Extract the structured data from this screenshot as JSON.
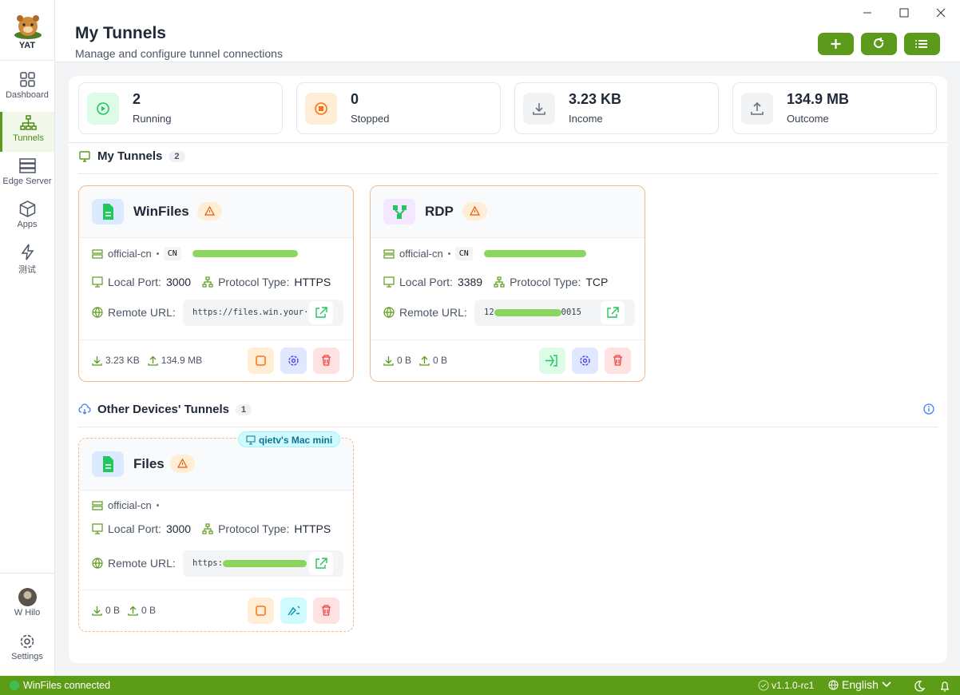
{
  "app": {
    "logo": "YAT",
    "nav": [
      "Dashboard",
      "Tunnels",
      "Edge Server",
      "Apps",
      "测试"
    ],
    "user": "W Hilo",
    "settings": "Settings"
  },
  "header": {
    "title": "My Tunnels",
    "subtitle": "Manage and configure tunnel connections"
  },
  "stats": [
    {
      "value": 2,
      "label": "Running"
    },
    {
      "value": 0,
      "label": "Stopped"
    },
    {
      "value": "3.23 KB",
      "label": "Income"
    },
    {
      "value": "134.9 MB",
      "label": "Outcome"
    }
  ],
  "labels": {
    "local_port": "Local Port:",
    "protocol_type": "Protocol Type:",
    "remote_url": "Remote URL:"
  },
  "sections": [
    {
      "title": "My Tunnels",
      "count": 2,
      "tunnels": [
        {
          "name": "WinFiles",
          "server": "official-cn",
          "region": "CN",
          "local_port": 3000,
          "protocol": "HTTPS",
          "remote_url": "https://files.win.your···",
          "download": "3.23 KB",
          "upload": "134.9 MB"
        },
        {
          "name": "RDP",
          "server": "official-cn",
          "region": "CN",
          "local_port": 3389,
          "protocol": "TCP",
          "remote_url": "12",
          "remote_url_tail": "0015",
          "download": "0 B",
          "upload": "0 B"
        }
      ]
    },
    {
      "title": "Other Devices' Tunnels",
      "count": 1,
      "tunnels": [
        {
          "device": "qietv's Mac mini",
          "name": "Files",
          "server": "official-cn",
          "local_port": 3000,
          "protocol": "HTTPS",
          "remote_url": "https:",
          "download": "0 B",
          "upload": "0 B"
        }
      ]
    }
  ],
  "status_bar": {
    "message": "WinFiles connected",
    "version": "v1.1.0-rc1",
    "language": "English"
  }
}
